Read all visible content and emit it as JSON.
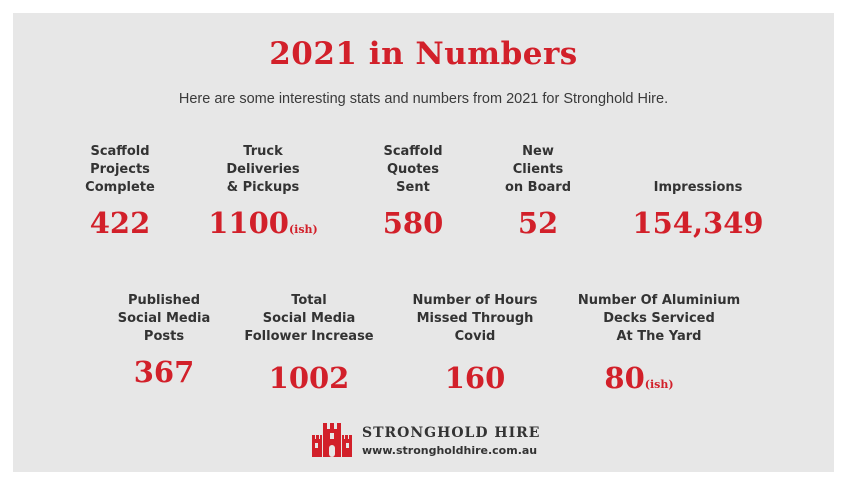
{
  "title": "2021 in Numbers",
  "subtitle": "Here are some interesting stats and numbers from 2021 for Stronghold Hire.",
  "row1": [
    {
      "label": "Scaffold\nProjects\nComplete",
      "value": "422",
      "suffix": ""
    },
    {
      "label": "Truck\nDeliveries\n& Pickups",
      "value": "1100",
      "suffix": "(ish)"
    },
    {
      "label": "Scaffold\nQuotes\nSent",
      "value": "580",
      "suffix": ""
    },
    {
      "label": "New\nClients\non Board",
      "value": "52",
      "suffix": ""
    },
    {
      "label": "Impressions",
      "value": "154,349",
      "suffix": ""
    }
  ],
  "row2": [
    {
      "label": "Published\nSocial Media\nPosts",
      "value": "367",
      "suffix": ""
    },
    {
      "label": "Total\nSocial Media\nFollower Increase",
      "value": "1002",
      "suffix": ""
    },
    {
      "label": "Number of Hours\nMissed Through\nCovid",
      "value": "160",
      "suffix": ""
    },
    {
      "label": "Number Of Aluminium\nDecks Serviced\nAt The Yard",
      "value": "80",
      "suffix": "(ish)"
    }
  ],
  "footer": {
    "brand": "STRONGHOLD HIRE",
    "website": "www.strongholdhire.com.au",
    "logo_icon": "castle-icon",
    "accent_color": "#d2202a"
  }
}
